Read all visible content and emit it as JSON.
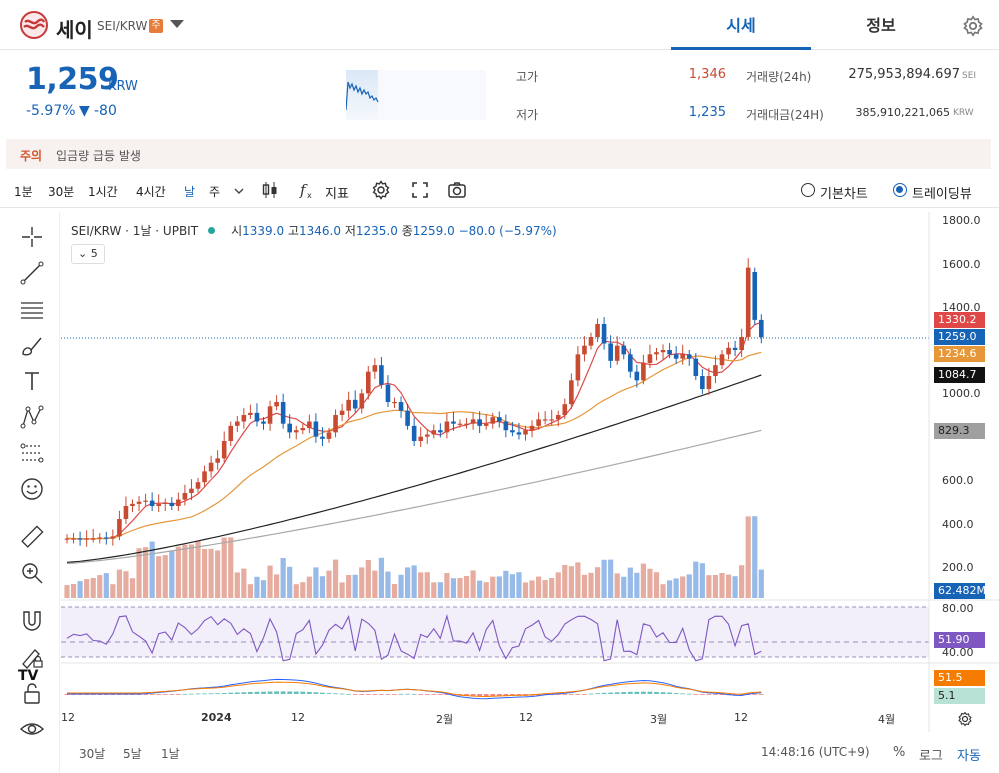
{
  "header": {
    "coin_name": "세이",
    "pair": "SEI/KRW",
    "warn_badge": "주",
    "tabs": [
      "시세",
      "정보"
    ]
  },
  "ticker": {
    "price": "1,259",
    "unit": "KRW",
    "change_pct": "-5.97%",
    "change_arrow": "▼",
    "change_abs": "-80",
    "high_label": "고가",
    "high": "1,346",
    "low_label": "저가",
    "low": "1,235",
    "volume_label": "거래량(24h)",
    "volume": "275,953,894.697",
    "volume_unit": "SEI",
    "amount_label": "거래대금(24H)",
    "amount": "385,910,221,065",
    "amount_unit": "KRW"
  },
  "notice": {
    "tag": "주의",
    "text": "입금량 급등 발생"
  },
  "toolbar": {
    "timeframes": [
      "1분",
      "30분",
      "1시간",
      "4시간",
      "날",
      "주"
    ],
    "indicator_label": "지표",
    "chart_modes": [
      "기본차트",
      "트레이딩뷰"
    ]
  },
  "legend": {
    "title": "SEI/KRW · 1날 · UPBIT",
    "o_lbl": "시",
    "o": "1339.0",
    "h_lbl": "고",
    "h": "1346.0",
    "l_lbl": "저",
    "l": "1235.0",
    "c_lbl": "종",
    "c": "1259.0",
    "chg": "−80.0 (−5.97%)",
    "count": "5"
  },
  "colors": {
    "up": "#c84a31",
    "down": "#1763b6",
    "ma20": "#e5973a",
    "ma5": "#e04848",
    "ma60": "#222222",
    "ma120": "#a8a8a8",
    "rsi": "#7e57c2"
  },
  "axis": {
    "price_ticks": [
      "1800.0",
      "1600.0",
      "1400.0",
      "1000.0",
      "600.0",
      "400.0",
      "200.0"
    ],
    "tags": {
      "ma5": "1330.2",
      "last": "1259.0",
      "ma20": "1234.6",
      "ma60": "1084.7",
      "ma120": "829.3",
      "vol": "62.482M",
      "rsi_top": "80.00",
      "rsi": "51.90",
      "rsi_bottom": "40.00",
      "macd1": "51.5",
      "macd2": "5.1"
    },
    "time_ticks": [
      "12",
      "2024",
      "12",
      "2월",
      "12",
      "3월",
      "12",
      "4월"
    ]
  },
  "bottom": {
    "ranges": [
      "30날",
      "5날",
      "1날"
    ],
    "clock": "14:48:16 (UTC+9)",
    "pct": "%",
    "log": "로그",
    "auto": "자동"
  },
  "chart_data": {
    "type": "candlestick",
    "pair": "SEI/KRW",
    "interval": "1날",
    "exchange": "UPBIT",
    "ylim": [
      0,
      1800
    ],
    "closes": [
      330,
      330,
      325,
      330,
      330,
      335,
      330,
      340,
      420,
      480,
      490,
      500,
      505,
      480,
      490,
      495,
      480,
      510,
      540,
      560,
      590,
      640,
      680,
      700,
      780,
      850,
      870,
      900,
      910,
      870,
      860,
      940,
      960,
      860,
      820,
      830,
      840,
      870,
      800,
      790,
      820,
      900,
      920,
      970,
      930,
      1000,
      1100,
      1130,
      1040,
      960,
      960,
      920,
      850,
      780,
      800,
      810,
      830,
      820,
      870,
      860,
      860,
      860,
      880,
      850,
      860,
      890,
      870,
      830,
      820,
      810,
      830,
      850,
      880,
      880,
      880,
      900,
      950,
      1060,
      1180,
      1220,
      1260,
      1320,
      1230,
      1150,
      1220,
      1180,
      1100,
      1060,
      1140,
      1180,
      1190,
      1200,
      1180,
      1160,
      1180,
      1160,
      1080,
      1020,
      1080,
      1130,
      1180,
      1210,
      1200,
      1260,
      1580,
      1339,
      1259
    ],
    "ma60_end": 1084.7,
    "ma120_end": 829.3,
    "ma20_end": 1234.6,
    "ma5_end": 1330.2,
    "last_volume": "62.482M",
    "rsi_last": 51.9
  }
}
